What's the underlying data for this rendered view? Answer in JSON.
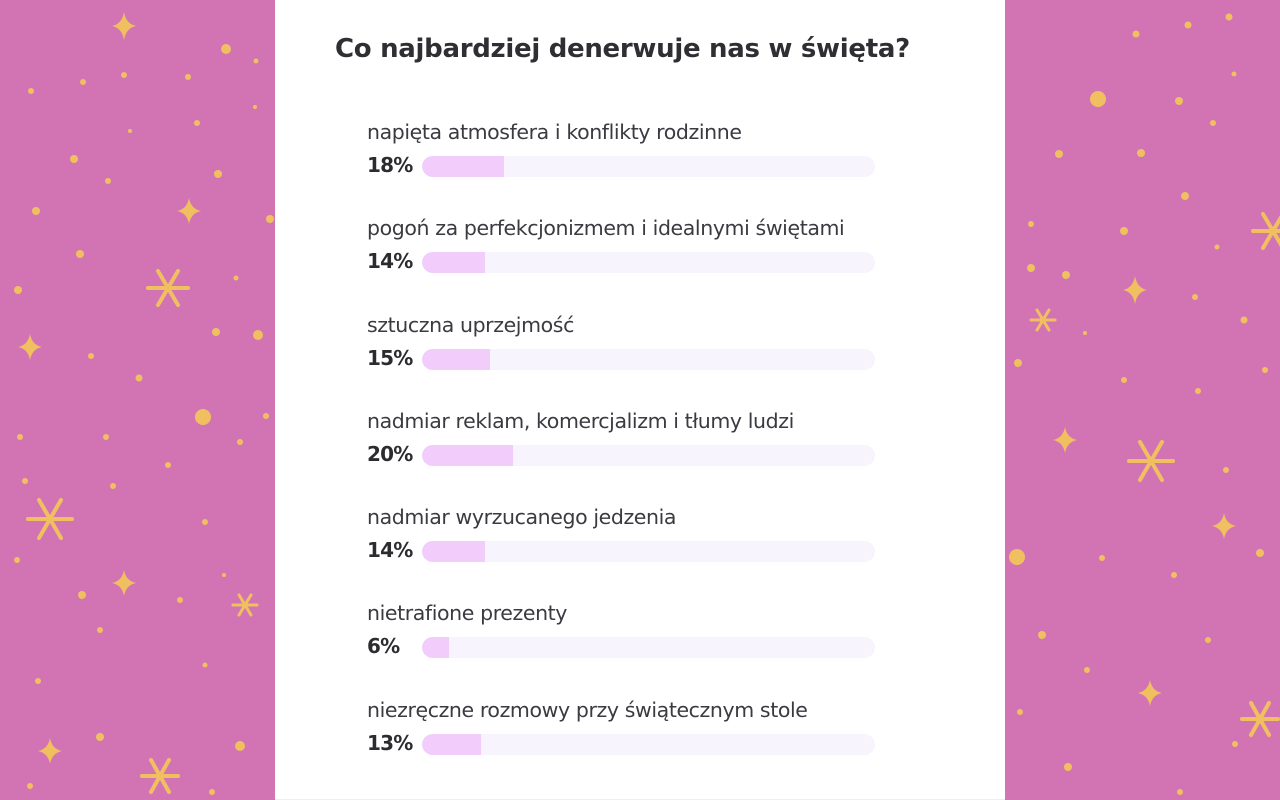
{
  "survey": {
    "title": "Co najbardziej denerwuje nas w święta?",
    "items": [
      {
        "label": "napięta atmosfera i konflikty rodzinne",
        "percent_label": "18%",
        "value": 18
      },
      {
        "label": "pogoń za perfekcjonizmem i idealnymi świętami",
        "percent_label": "14%",
        "value": 14
      },
      {
        "label": "sztuczna uprzejmość",
        "percent_label": "15%",
        "value": 15
      },
      {
        "label": "nadmiar reklam, komercjalizm i tłumy ludzi",
        "percent_label": "20%",
        "value": 20
      },
      {
        "label": "nadmiar wyrzucanego jedzenia",
        "percent_label": "14%",
        "value": 14
      },
      {
        "label": "nietrafione prezenty",
        "percent_label": "6%",
        "value": 6
      },
      {
        "label": "niezręczne rozmowy przy świątecznym stole",
        "percent_label": "13%",
        "value": 13
      }
    ]
  },
  "colors": {
    "background": "#d274b4",
    "decoration": "#f0c060",
    "bar_fill": "#f2ccfb",
    "bar_track": "#f8f4fd",
    "text": "#3a3a40"
  },
  "chart_data": {
    "type": "bar",
    "orientation": "horizontal",
    "title": "Co najbardziej denerwuje nas w święta?",
    "categories": [
      "napięta atmosfera i konflikty rodzinne",
      "pogoń za perfekcjonizmem i idealnymi świętami",
      "sztuczna uprzejmość",
      "nadmiar reklam, komercjalizm i tłumy ludzi",
      "nadmiar wyrzucanego jedzenia",
      "nietrafione prezenty",
      "niezręczne rozmowy przy świątecznym stole"
    ],
    "values": [
      18,
      14,
      15,
      20,
      14,
      6,
      13
    ],
    "value_labels": [
      "18%",
      "14%",
      "15%",
      "20%",
      "14%",
      "6%",
      "13%"
    ],
    "xlabel": "",
    "ylabel": "",
    "xlim": [
      0,
      100
    ],
    "grid": false,
    "legend": "none"
  }
}
